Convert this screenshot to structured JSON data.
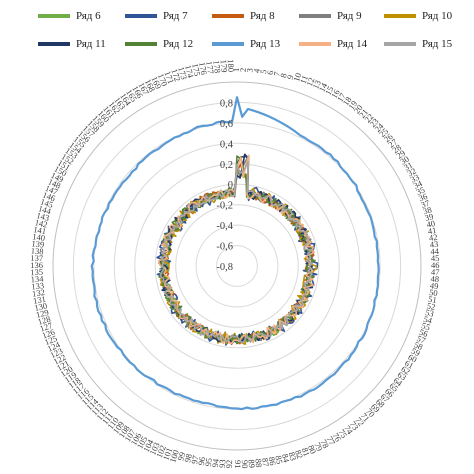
{
  "chart_data": {
    "type": "radar",
    "title": "",
    "legend_position": "top",
    "grid": true,
    "radial_ticks": [
      "0,8",
      "0,6",
      "0,4",
      "0,2",
      "0",
      "-0,2",
      "-0,4",
      "-0,6",
      "-0,8"
    ],
    "radial_range": [
      -0.8,
      1.0
    ],
    "angular_axis": {
      "start": 1,
      "end": 180,
      "visible_labels": [
        "1",
        "4",
        "7",
        "10",
        "13",
        "16",
        "19",
        "22",
        "25",
        "28"
      ]
    },
    "series": [
      {
        "name": "Ряд 6",
        "color": "#70ad47",
        "mean": -0.08,
        "amplitude": 0.05
      },
      {
        "name": "Ряд 7",
        "color": "#2f5597",
        "mean": -0.08,
        "amplitude": 0.07
      },
      {
        "name": "Ряд 8",
        "color": "#c55a11",
        "mean": -0.08,
        "amplitude": 0.05
      },
      {
        "name": "Ряд 9",
        "color": "#7f7f7f",
        "mean": -0.08,
        "amplitude": 0.05
      },
      {
        "name": "Ряд 10",
        "color": "#bf9000",
        "mean": -0.08,
        "amplitude": 0.06
      },
      {
        "name": "Ряд 11",
        "color": "#203864",
        "mean": -0.08,
        "amplitude": 0.05
      },
      {
        "name": "Ряд 12",
        "color": "#548235",
        "mean": -0.08,
        "amplitude": 0.05
      },
      {
        "name": "Ряд 13",
        "color": "#5b9bd5",
        "mean": 0.6,
        "amplitude": 0.01
      },
      {
        "name": "Ряд 14",
        "color": "#f4b183",
        "mean": -0.08,
        "amplitude": 0.05
      },
      {
        "name": "Ряд 15",
        "color": "#a5a5a5",
        "mean": -0.08,
        "amplitude": 0.04
      }
    ]
  }
}
